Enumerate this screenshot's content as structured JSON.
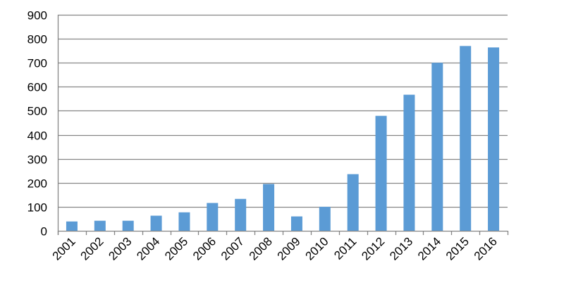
{
  "chart_data": {
    "type": "bar",
    "title": "",
    "xlabel": "",
    "ylabel": "",
    "categories": [
      "2001",
      "2002",
      "2003",
      "2004",
      "2005",
      "2006",
      "2007",
      "2008",
      "2009",
      "2010",
      "2011",
      "2012",
      "2013",
      "2014",
      "2015",
      "2016"
    ],
    "values": [
      39,
      42,
      42,
      63,
      77,
      116,
      133,
      195,
      60,
      100,
      236,
      479,
      567,
      700,
      770,
      764
    ],
    "ylim": [
      0,
      900
    ],
    "yticks": [
      0,
      100,
      200,
      300,
      400,
      500,
      600,
      700,
      800,
      900
    ],
    "grid": true,
    "legend": "none",
    "bar_color": "#5B9BD5",
    "grid_color": "#868686"
  }
}
